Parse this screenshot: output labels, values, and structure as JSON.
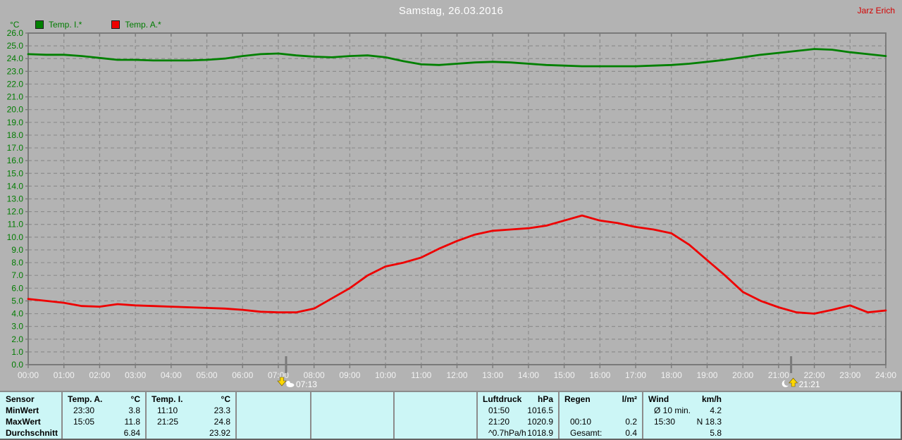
{
  "window": {
    "title": "Samstag, 26.03.2016",
    "user": "Jarz Erich"
  },
  "legend": {
    "unit": "°C",
    "items": [
      {
        "label": "Temp. I.*",
        "color": "#008000"
      },
      {
        "label": "Temp. A.*",
        "color": "#ee0000"
      }
    ]
  },
  "chart_data": {
    "type": "line",
    "title": "Samstag, 26.03.2016",
    "ylabel": "°C",
    "ylim": [
      0,
      26
    ],
    "y_step": 1.0,
    "grid": true,
    "legend_position": "top-left",
    "y_ticks": [
      "0.0",
      "1.0",
      "2.0",
      "3.0",
      "4.0",
      "5.0",
      "6.0",
      "7.0",
      "8.0",
      "9.0",
      "10.0",
      "11.0",
      "12.0",
      "13.0",
      "14.0",
      "15.0",
      "16.0",
      "17.0",
      "18.0",
      "19.0",
      "20.0",
      "21.0",
      "22.0",
      "23.0",
      "24.0",
      "25.0",
      "26.0"
    ],
    "x_ticks": [
      "00:00",
      "01:00",
      "02:00",
      "03:00",
      "04:00",
      "05:00",
      "06:00",
      "07:00",
      "08:00",
      "09:00",
      "10:00",
      "11:00",
      "12:00",
      "13:00",
      "14:00",
      "15:00",
      "16:00",
      "17:00",
      "18:00",
      "19:00",
      "20:00",
      "21:00",
      "22:00",
      "23:00",
      "24:00"
    ],
    "x_hours": [
      0,
      0.5,
      1,
      1.5,
      2,
      2.5,
      3,
      3.5,
      4,
      4.5,
      5,
      5.5,
      6,
      6.5,
      7,
      7.5,
      8,
      8.5,
      9,
      9.5,
      10,
      10.5,
      11,
      11.5,
      12,
      12.5,
      13,
      13.5,
      14,
      14.5,
      15,
      15.5,
      16,
      16.5,
      17,
      17.5,
      18,
      18.5,
      19,
      19.5,
      20,
      20.5,
      21,
      21.5,
      22,
      22.5,
      23,
      23.5,
      24
    ],
    "series": [
      {
        "name": "Temp. I.*",
        "color": "#008000",
        "values": [
          24.35,
          24.3,
          24.3,
          24.2,
          24.05,
          23.9,
          23.9,
          23.85,
          23.85,
          23.85,
          23.9,
          24.0,
          24.2,
          24.35,
          24.4,
          24.25,
          24.15,
          24.1,
          24.2,
          24.25,
          24.1,
          23.8,
          23.55,
          23.5,
          23.6,
          23.7,
          23.75,
          23.7,
          23.6,
          23.5,
          23.45,
          23.4,
          23.4,
          23.4,
          23.4,
          23.45,
          23.5,
          23.6,
          23.75,
          23.9,
          24.1,
          24.3,
          24.45,
          24.6,
          24.75,
          24.7,
          24.5,
          24.35,
          24.2
        ]
      },
      {
        "name": "Temp. A.*",
        "color": "#ee0000",
        "values": [
          5.15,
          5.0,
          4.85,
          4.6,
          4.55,
          4.75,
          4.65,
          4.6,
          4.55,
          4.5,
          4.45,
          4.4,
          4.3,
          4.15,
          4.1,
          4.1,
          4.4,
          5.2,
          6.0,
          7.0,
          7.7,
          8.0,
          8.4,
          9.1,
          9.7,
          10.2,
          10.5,
          10.6,
          10.7,
          10.9,
          11.3,
          11.7,
          11.3,
          11.1,
          10.8,
          10.6,
          10.3,
          9.4,
          8.2,
          7.0,
          5.7,
          5.0,
          4.5,
          4.1,
          4.0,
          4.3,
          4.65,
          4.1,
          4.25
        ]
      }
    ],
    "sun_markers": [
      {
        "hour": 7.2167,
        "label": "07:13",
        "type": "sunrise"
      },
      {
        "hour": 21.35,
        "label": "21:21",
        "type": "sunset"
      }
    ]
  },
  "stats_table": {
    "row_labels": [
      "Sensor",
      "MinWert",
      "MaxWert",
      "Durchschnitt"
    ],
    "groups": [
      {
        "name": "Temp. A.",
        "unit": "°C",
        "rows": [
          [
            "23:30",
            "3.8"
          ],
          [
            "15:05",
            "11.8"
          ],
          [
            "",
            "6.84"
          ]
        ]
      },
      {
        "name": "Temp. I.",
        "unit": "°C",
        "rows": [
          [
            "11:10",
            "23.3"
          ],
          [
            "21:25",
            "24.8"
          ],
          [
            "",
            "23.92"
          ]
        ]
      },
      {
        "name": "",
        "unit": "",
        "rows": [
          [
            "",
            ""
          ],
          [
            "",
            ""
          ],
          [
            "",
            ""
          ]
        ]
      },
      {
        "name": "",
        "unit": "",
        "rows": [
          [
            "",
            ""
          ],
          [
            "",
            ""
          ],
          [
            "",
            ""
          ]
        ]
      },
      {
        "name": "",
        "unit": "",
        "rows": [
          [
            "",
            ""
          ],
          [
            "",
            ""
          ],
          [
            "",
            ""
          ]
        ]
      },
      {
        "name": "Luftdruck",
        "unit": "hPa",
        "rows": [
          [
            "01:50",
            "1016.5"
          ],
          [
            "21:20",
            "1020.9"
          ],
          [
            "^0.7hPa/h",
            "1018.9"
          ]
        ]
      },
      {
        "name": "Regen",
        "unit": "l/m²",
        "rows": [
          [
            "",
            ""
          ],
          [
            "00:10",
            "0.2"
          ],
          [
            "Gesamt:",
            "0.4"
          ]
        ]
      },
      {
        "name": "Wind",
        "unit": "km/h",
        "rows": [
          [
            "Ø 10 min.",
            "4.2"
          ],
          [
            "15:30",
            "N 18.3"
          ],
          [
            "",
            "5.8"
          ]
        ]
      }
    ]
  },
  "colors": {
    "background": "#b3b3b3",
    "plot_border": "#7a7a7a",
    "grid": "#8d8d8d",
    "y_label": "#007c00",
    "x_label": "#f2f2f2",
    "table_bg": "#ccf6f6",
    "table_line": "#8c8c8c",
    "marker_yellow": "#ffd800",
    "marker_text": "#ffffff",
    "user_red": "#d40000"
  }
}
